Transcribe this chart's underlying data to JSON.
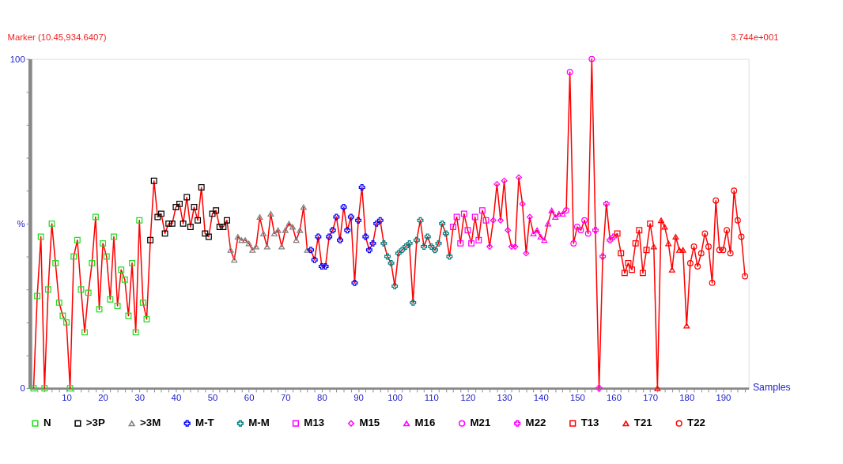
{
  "chart_data": {
    "type": "line",
    "xlabel": "Samples",
    "annotations": [
      "Marker (10.45,934.6407)",
      "3.744e+001"
    ],
    "xlim": [
      0,
      197
    ],
    "ylim": [
      0,
      100
    ],
    "xticks": [
      {
        "value": 2,
        "label": null
      },
      {
        "value": 4,
        "label": null
      },
      {
        "value": 6,
        "label": null
      },
      {
        "value": 8,
        "label": null
      },
      10,
      {
        "value": 12,
        "label": null
      },
      {
        "value": 14,
        "label": null
      },
      {
        "value": 16,
        "label": null
      },
      {
        "value": 18,
        "label": null
      },
      20,
      {
        "value": 22,
        "label": null
      },
      {
        "value": 24,
        "label": null
      },
      {
        "value": 26,
        "label": null
      },
      {
        "value": 28,
        "label": null
      },
      30,
      {
        "value": 32,
        "label": null
      },
      {
        "value": 34,
        "label": null
      },
      {
        "value": 36,
        "label": null
      },
      {
        "value": 38,
        "label": null
      },
      40,
      {
        "value": 42,
        "label": null
      },
      {
        "value": 44,
        "label": null
      },
      {
        "value": 46,
        "label": null
      },
      {
        "value": 48,
        "label": null
      },
      50,
      {
        "value": 52,
        "label": null
      },
      {
        "value": 54,
        "label": null
      },
      {
        "value": 56,
        "label": null
      },
      {
        "value": 58,
        "label": null
      },
      60,
      {
        "value": 62,
        "label": null
      },
      {
        "value": 64,
        "label": null
      },
      {
        "value": 66,
        "label": null
      },
      {
        "value": 68,
        "label": null
      },
      70,
      {
        "value": 72,
        "label": null
      },
      {
        "value": 74,
        "label": null
      },
      {
        "value": 76,
        "label": null
      },
      {
        "value": 78,
        "label": null
      },
      80,
      {
        "value": 82,
        "label": null
      },
      {
        "value": 84,
        "label": null
      },
      {
        "value": 86,
        "label": null
      },
      {
        "value": 88,
        "label": null
      },
      90,
      {
        "value": 92,
        "label": null
      },
      {
        "value": 94,
        "label": null
      },
      {
        "value": 96,
        "label": null
      },
      {
        "value": 98,
        "label": null
      },
      100,
      {
        "value": 102,
        "label": null
      },
      {
        "value": 104,
        "label": null
      },
      {
        "value": 106,
        "label": null
      },
      {
        "value": 108,
        "label": null
      },
      110,
      {
        "value": 112,
        "label": null
      },
      {
        "value": 114,
        "label": null
      },
      {
        "value": 116,
        "label": null
      },
      {
        "value": 118,
        "label": null
      },
      120,
      {
        "value": 122,
        "label": null
      },
      {
        "value": 124,
        "label": null
      },
      {
        "value": 126,
        "label": null
      },
      {
        "value": 128,
        "label": null
      },
      130,
      {
        "value": 132,
        "label": null
      },
      {
        "value": 134,
        "label": null
      },
      {
        "value": 136,
        "label": null
      },
      {
        "value": 138,
        "label": null
      },
      140,
      {
        "value": 142,
        "label": null
      },
      {
        "value": 144,
        "label": null
      },
      {
        "value": 146,
        "label": null
      },
      {
        "value": 148,
        "label": null
      },
      150,
      {
        "value": 152,
        "label": null
      },
      {
        "value": 154,
        "label": null
      },
      {
        "value": 156,
        "label": null
      },
      {
        "value": 158,
        "label": null
      },
      160,
      {
        "value": 162,
        "label": null
      },
      {
        "value": 164,
        "label": null
      },
      {
        "value": 166,
        "label": null
      },
      {
        "value": 168,
        "label": null
      },
      170,
      {
        "value": 172,
        "label": null
      },
      {
        "value": 174,
        "label": null
      },
      {
        "value": 176,
        "label": null
      },
      {
        "value": 178,
        "label": null
      },
      180,
      {
        "value": 182,
        "label": null
      },
      {
        "value": 184,
        "label": null
      },
      {
        "value": 186,
        "label": null
      },
      {
        "value": 188,
        "label": null
      },
      190,
      {
        "value": 192,
        "label": null
      },
      {
        "value": 194,
        "label": null
      },
      {
        "value": 196,
        "label": null
      }
    ],
    "yticks": [
      0,
      {
        "value": 10,
        "label": null
      },
      {
        "value": 20,
        "label": null
      },
      {
        "value": 30,
        "label": null
      },
      {
        "value": 40,
        "label": null
      },
      {
        "value": 50,
        "label": "%"
      },
      {
        "value": 60,
        "label": null
      },
      {
        "value": 70,
        "label": null
      },
      {
        "value": 80,
        "label": null
      },
      {
        "value": 90,
        "label": null
      },
      100
    ],
    "grid": false,
    "legend": "bottom",
    "line_style": "solid",
    "series": [
      {
        "type": "line",
        "color": "#ff0000",
        "marker": "none",
        "x": [
          1,
          2,
          3,
          4,
          5,
          6,
          7,
          8,
          9,
          10,
          11,
          12,
          13,
          14,
          15,
          16,
          17,
          18,
          19,
          20,
          21,
          22,
          23,
          24,
          25,
          26,
          27,
          28,
          29,
          30,
          31,
          32,
          33,
          34,
          35,
          36,
          37,
          38,
          39,
          40,
          41,
          42,
          43,
          44,
          45,
          46,
          47,
          48,
          49,
          50,
          51,
          52,
          53,
          54,
          55,
          56,
          57,
          58,
          59,
          60,
          61,
          62,
          63,
          64,
          65,
          66,
          67,
          68,
          69,
          70,
          71,
          72,
          73,
          74,
          75,
          76,
          77,
          78,
          79,
          80,
          81,
          82,
          83,
          84,
          85,
          86,
          87,
          88,
          89,
          90,
          91,
          92,
          93,
          94,
          95,
          96,
          97,
          98,
          99,
          100,
          101,
          102,
          103,
          104,
          105,
          106,
          107,
          108,
          109,
          110,
          111,
          112,
          113,
          114,
          115,
          116,
          117,
          118,
          119,
          120,
          121,
          122,
          123,
          124,
          125,
          126,
          127,
          128,
          129,
          130,
          131,
          132,
          133,
          134,
          135,
          136,
          137,
          138,
          139,
          140,
          141,
          142,
          143,
          144,
          145,
          146,
          147,
          148,
          149,
          150,
          151,
          152,
          153,
          154,
          155,
          156,
          157,
          158,
          159,
          160,
          161,
          162,
          163,
          164,
          165,
          166,
          167,
          168,
          169,
          170,
          171,
          172,
          173,
          174,
          175,
          176,
          177,
          178,
          179,
          180,
          181,
          182,
          183,
          184,
          185,
          186,
          187,
          188,
          189,
          190,
          191,
          192,
          193,
          194,
          195,
          196
        ],
        "values": [
          0,
          28,
          46,
          0,
          30,
          50,
          38,
          26,
          22,
          20,
          0,
          40,
          45,
          30,
          17,
          29,
          38,
          52,
          24,
          44,
          40,
          27,
          46,
          25,
          36,
          33,
          22,
          38,
          17,
          51,
          26,
          21,
          45,
          63,
          52,
          53,
          47,
          50,
          50,
          55,
          56,
          50,
          58,
          49,
          55,
          51,
          61,
          47,
          46,
          53,
          54,
          49,
          49,
          51,
          42,
          39,
          46,
          45,
          45,
          44,
          42,
          43,
          52,
          47,
          43,
          53,
          47,
          48,
          43,
          48,
          50,
          49,
          45,
          48,
          55,
          42,
          42,
          39,
          46,
          37,
          37,
          46,
          48,
          52,
          45,
          55,
          48,
          52,
          32,
          51,
          61,
          46,
          42,
          44,
          50,
          51,
          44,
          40,
          38,
          31,
          41,
          42,
          43,
          44,
          26,
          45,
          51,
          43,
          46,
          43,
          42,
          44,
          50,
          47,
          40,
          49,
          52,
          44,
          53,
          48,
          44,
          52,
          45,
          54,
          51,
          43,
          51,
          62,
          51,
          63,
          48,
          43,
          43,
          64,
          56,
          41,
          52,
          47,
          48,
          46,
          45,
          50,
          54,
          52,
          53,
          53,
          54,
          96,
          44,
          49,
          48,
          51,
          47,
          100,
          48,
          0,
          40,
          56,
          45,
          46,
          47,
          41,
          35,
          38,
          36,
          44,
          48,
          35,
          42,
          50,
          43,
          0,
          51,
          49,
          44,
          36,
          46,
          42,
          42,
          19,
          38,
          43,
          37,
          41,
          47,
          43,
          32,
          57,
          42,
          42,
          48,
          41,
          60,
          51,
          46,
          34
        ]
      },
      {
        "type": "scatter",
        "name": "N",
        "color": "#22dd22",
        "marker": "square",
        "x": [
          1,
          2,
          3,
          4,
          5,
          6,
          7,
          8,
          9,
          10,
          11,
          12,
          13,
          14,
          15,
          16,
          17,
          18,
          19,
          20,
          21,
          22,
          23,
          24,
          25,
          26,
          27,
          28,
          29,
          30,
          31,
          32
        ],
        "values": [
          0,
          28,
          46,
          0,
          30,
          50,
          38,
          26,
          22,
          20,
          0,
          40,
          45,
          30,
          17,
          29,
          38,
          52,
          24,
          44,
          40,
          27,
          46,
          25,
          36,
          33,
          22,
          38,
          17,
          51,
          26,
          21
        ]
      },
      {
        "type": "scatter",
        "name": ">3P",
        "color": "#000000",
        "marker": "square",
        "x": [
          33,
          34,
          35,
          36,
          37,
          38,
          39,
          40,
          41,
          42,
          43,
          44,
          45,
          46,
          47,
          48,
          49,
          50,
          51,
          52,
          53,
          54
        ],
        "values": [
          45,
          63,
          52,
          53,
          47,
          50,
          50,
          55,
          56,
          50,
          58,
          49,
          55,
          51,
          61,
          47,
          46,
          53,
          54,
          49,
          49,
          51
        ]
      },
      {
        "type": "scatter",
        "name": ">3M",
        "color": "#808080",
        "marker": "triangle",
        "x": [
          55,
          56,
          57,
          58,
          59,
          60,
          61,
          62,
          63,
          64,
          65,
          66,
          67,
          68,
          69,
          70,
          71,
          72,
          73,
          74,
          75,
          76
        ],
        "values": [
          42,
          39,
          46,
          45,
          45,
          44,
          42,
          43,
          52,
          47,
          43,
          53,
          47,
          48,
          43,
          48,
          50,
          49,
          45,
          48,
          55,
          42
        ]
      },
      {
        "type": "scatter",
        "name": "M-T",
        "color": "#0000ff",
        "marker": "cross",
        "x": [
          77,
          78,
          79,
          80,
          81,
          82,
          83,
          84,
          85,
          86,
          87,
          88,
          89,
          90,
          91,
          92,
          93,
          94,
          95,
          96
        ],
        "values": [
          42,
          39,
          46,
          37,
          37,
          46,
          48,
          52,
          45,
          55,
          48,
          52,
          32,
          51,
          61,
          46,
          42,
          44,
          50,
          51
        ]
      },
      {
        "type": "scatter",
        "name": "M-M",
        "color": "#008080",
        "marker": "cross",
        "x": [
          97,
          98,
          99,
          100,
          101,
          102,
          103,
          104,
          105,
          106,
          107,
          108,
          109,
          110,
          111,
          112,
          113,
          114,
          115
        ],
        "values": [
          44,
          40,
          38,
          31,
          41,
          42,
          43,
          44,
          26,
          45,
          51,
          43,
          46,
          43,
          42,
          44,
          50,
          47,
          40
        ]
      },
      {
        "type": "scatter",
        "name": "M13",
        "color": "#ff00ff",
        "marker": "square",
        "x": [
          116,
          117,
          118,
          119,
          120,
          121,
          122,
          123,
          124,
          125
        ],
        "values": [
          49,
          52,
          44,
          53,
          48,
          44,
          52,
          45,
          54,
          51
        ]
      },
      {
        "type": "scatter",
        "name": "M15",
        "color": "#ff00ff",
        "marker": "diamond",
        "x": [
          126,
          127,
          128,
          129,
          130,
          131,
          132,
          133,
          134,
          135,
          136,
          137
        ],
        "values": [
          43,
          51,
          62,
          51,
          63,
          48,
          43,
          43,
          64,
          56,
          41,
          52
        ]
      },
      {
        "type": "scatter",
        "name": "M16",
        "color": "#ff00ff",
        "marker": "triangle",
        "x": [
          138,
          139,
          140,
          141,
          142,
          143,
          144,
          145,
          146
        ],
        "values": [
          47,
          48,
          46,
          45,
          50,
          54,
          52,
          53,
          53
        ]
      },
      {
        "type": "scatter",
        "name": "M21",
        "color": "#ff00ff",
        "marker": "circle",
        "x": [
          147,
          148,
          149,
          150,
          151,
          152,
          153,
          154
        ],
        "values": [
          54,
          96,
          44,
          49,
          48,
          51,
          47,
          100
        ]
      },
      {
        "type": "scatter",
        "name": "M22",
        "color": "#ff00ff",
        "marker": "cross",
        "x": [
          155,
          156,
          157,
          158,
          159,
          160
        ],
        "values": [
          48,
          0,
          40,
          56,
          45,
          46
        ]
      },
      {
        "type": "scatter",
        "name": "T13",
        "color": "#ff0000",
        "marker": "square",
        "x": [
          161,
          162,
          163,
          164,
          165,
          166,
          167,
          168,
          169,
          170
        ],
        "values": [
          47,
          41,
          35,
          38,
          36,
          44,
          48,
          35,
          42,
          50
        ]
      },
      {
        "type": "scatter",
        "name": "T21",
        "color": "#ff0000",
        "marker": "triangle",
        "x": [
          171,
          172,
          173,
          174,
          175,
          176,
          177,
          178,
          179,
          180
        ],
        "values": [
          43,
          0,
          51,
          49,
          44,
          36,
          46,
          42,
          42,
          19
        ]
      },
      {
        "type": "scatter",
        "name": "T22",
        "color": "#ff0000",
        "marker": "circle",
        "x": [
          181,
          182,
          183,
          184,
          185,
          186,
          187,
          188,
          189,
          190,
          191,
          192,
          193,
          194,
          195,
          196
        ],
        "values": [
          38,
          43,
          37,
          41,
          47,
          43,
          32,
          57,
          42,
          42,
          48,
          41,
          60,
          51,
          46,
          34
        ]
      }
    ]
  }
}
